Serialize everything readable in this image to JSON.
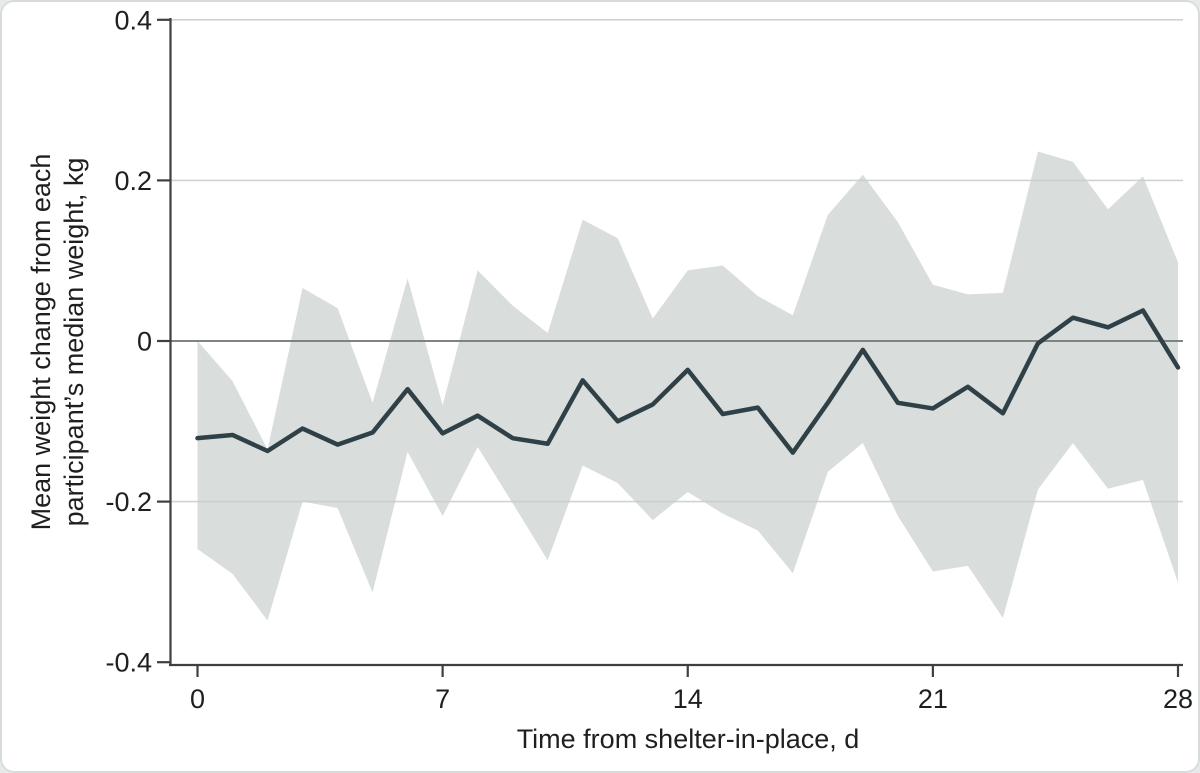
{
  "figure": {
    "y_axis": {
      "label_line1": "Mean weight change from each",
      "label_line2": "participant’s median weight, kg",
      "tick_values": [
        0.4,
        0.2,
        0,
        -0.2,
        -0.4
      ],
      "tick_labels": [
        "0.4",
        "0.2",
        "0",
        "-0.2",
        "-0.4"
      ],
      "range": [
        -0.4,
        0.4
      ]
    },
    "x_axis": {
      "label": "Time from shelter-in-place, d",
      "tick_values": [
        0,
        7,
        14,
        21,
        28
      ],
      "tick_labels": [
        "0",
        "7",
        "14",
        "21",
        "28"
      ],
      "range": [
        0,
        28
      ]
    }
  },
  "chart_data": {
    "type": "line",
    "title": "",
    "xlabel": "Time from shelter-in-place, d",
    "ylabel": "Mean weight change from each participant’s median weight, kg",
    "x": [
      0,
      1,
      2,
      3,
      4,
      5,
      6,
      7,
      8,
      9,
      10,
      11,
      12,
      13,
      14,
      15,
      16,
      17,
      18,
      19,
      20,
      21,
      22,
      23,
      24,
      25,
      26,
      27,
      28
    ],
    "series": [
      {
        "name": "mean_weight_change",
        "style": "line",
        "values": [
          -0.121,
          -0.117,
          -0.137,
          -0.109,
          -0.129,
          -0.114,
          -0.06,
          -0.115,
          -0.093,
          -0.121,
          -0.128,
          -0.049,
          -0.1,
          -0.079,
          -0.036,
          -0.091,
          -0.083,
          -0.139,
          -0.077,
          -0.011,
          -0.077,
          -0.084,
          -0.057,
          -0.09,
          -0.003,
          0.029,
          0.017,
          0.038,
          -0.033
        ]
      },
      {
        "name": "confidence_band_upper",
        "style": "band-edge",
        "values": [
          0.0,
          -0.05,
          -0.135,
          0.066,
          0.041,
          -0.077,
          0.078,
          -0.08,
          0.088,
          0.044,
          0.01,
          0.151,
          0.128,
          0.028,
          0.088,
          0.094,
          0.056,
          0.032,
          0.157,
          0.207,
          0.148,
          0.07,
          0.058,
          0.06,
          0.236,
          0.223,
          0.164,
          0.205,
          0.098
        ]
      },
      {
        "name": "confidence_band_lower",
        "style": "band-edge",
        "values": [
          -0.259,
          -0.29,
          -0.348,
          -0.2,
          -0.208,
          -0.313,
          -0.138,
          -0.218,
          -0.132,
          -0.202,
          -0.273,
          -0.155,
          -0.177,
          -0.223,
          -0.188,
          -0.215,
          -0.236,
          -0.289,
          -0.163,
          -0.127,
          -0.218,
          -0.287,
          -0.28,
          -0.345,
          -0.185,
          -0.127,
          -0.184,
          -0.173,
          -0.301
        ]
      }
    ],
    "xlim": [
      0,
      28
    ],
    "ylim": [
      -0.4,
      0.4
    ],
    "gridlines_light": [
      0.4,
      0.2,
      -0.2
    ],
    "gridline_zero": 0,
    "legend": "none",
    "colors": {
      "mean_line": "#2f4147",
      "band_fill": "#d9dddc",
      "grid_light": "#c7cbcb",
      "grid_zero": "#7e8384",
      "axis": "#3c4041",
      "text": "#1d1f20",
      "background": "#ffffff"
    }
  }
}
